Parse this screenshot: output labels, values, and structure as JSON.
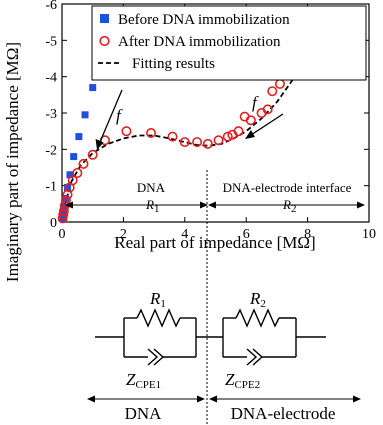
{
  "chart_data": {
    "type": "scatter",
    "xlabel": "Real part of impedance [MΩ]",
    "ylabel": "Imaginary part of impedance [MΩ]",
    "xlim": [
      0,
      10
    ],
    "ylim": [
      0,
      -6
    ],
    "x_ticks": [
      "0",
      "2",
      "4",
      "6",
      "8",
      "10"
    ],
    "y_ticks": [
      "0",
      "-1",
      "-2",
      "-3",
      "-4",
      "-5",
      "-6"
    ],
    "legend_position": "top-right",
    "series": [
      {
        "name": "Before DNA immobilization",
        "marker": "filled-square",
        "color": "#1f4fe0",
        "x": [
          0.03,
          0.05,
          0.08,
          0.12,
          0.18,
          0.26,
          0.38,
          0.55,
          0.75,
          1.0,
          1.25
        ],
        "y": [
          -0.1,
          -0.25,
          -0.4,
          -0.65,
          -0.95,
          -1.3,
          -1.8,
          -2.35,
          -2.95,
          -3.7,
          -4.6
        ]
      },
      {
        "name": "After DNA immobilization",
        "marker": "open-circle",
        "color": "#e02020",
        "x": [
          0.02,
          0.04,
          0.06,
          0.09,
          0.13,
          0.18,
          0.25,
          0.35,
          0.5,
          0.7,
          1.0,
          1.4,
          2.1,
          2.9,
          3.6,
          4.0,
          4.4,
          4.75,
          5.1,
          5.4,
          5.55,
          5.75,
          5.95,
          6.15,
          6.5,
          6.7,
          6.85,
          7.1,
          7.5,
          8.1
        ],
        "y": [
          -0.1,
          -0.2,
          -0.3,
          -0.45,
          -0.6,
          -0.75,
          -0.95,
          -1.15,
          -1.35,
          -1.6,
          -1.85,
          -2.25,
          -2.5,
          -2.45,
          -2.35,
          -2.2,
          -2.2,
          -2.15,
          -2.25,
          -2.35,
          -2.4,
          -2.5,
          -2.9,
          -2.8,
          -3.0,
          -3.1,
          -3.6,
          -3.8,
          -4.3,
          -4.9
        ]
      },
      {
        "name": "Fitting results",
        "style": "dashed-line",
        "color": "#000000",
        "x": [
          0,
          0.1,
          0.3,
          0.6,
          1.0,
          1.5,
          2.0,
          2.5,
          3.0,
          3.5,
          4.0,
          4.4,
          4.8,
          5.2,
          5.6,
          6.0,
          6.5,
          7.0,
          7.5,
          8.1
        ],
        "y": [
          0,
          -0.5,
          -1.1,
          -1.55,
          -1.9,
          -2.15,
          -2.3,
          -2.38,
          -2.38,
          -2.3,
          -2.2,
          -2.12,
          -2.1,
          -2.15,
          -2.3,
          -2.5,
          -2.85,
          -3.3,
          -3.9,
          -4.7
        ]
      }
    ],
    "annotations": {
      "f_symbol": "f",
      "region_left_label": "DNA",
      "region_left_param": "R",
      "region_left_sub": "1",
      "region_right_label": "DNA-electrode interface",
      "region_right_param": "R",
      "region_right_sub": "2"
    }
  },
  "circuit": {
    "r1_symbol": "R",
    "r1_sub": "1",
    "r2_symbol": "R",
    "r2_sub": "2",
    "z1_symbol": "Z",
    "z1_sub": "CPE1",
    "z2_symbol": "Z",
    "z2_sub": "CPE2",
    "left_label": "DNA",
    "right_label": "DNA-electrode"
  }
}
